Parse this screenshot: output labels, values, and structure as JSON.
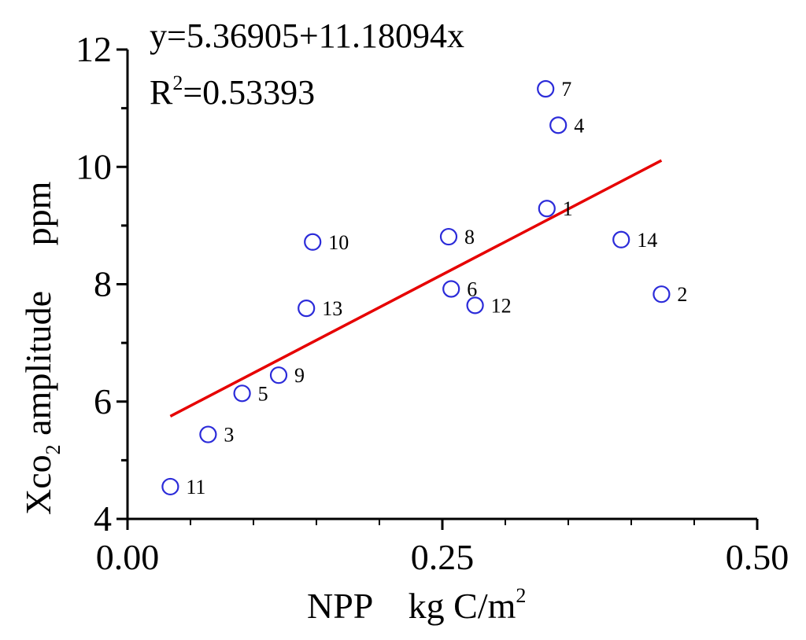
{
  "chart_data": {
    "type": "scatter",
    "equation": "y=5.36905+11.18094x",
    "r2_prefix": "R",
    "r2_sup": "2",
    "r2_value": "=0.53393",
    "xlabel_main": "NPP    kg C/m",
    "xlabel_sup": "2",
    "ylabel_main": "Xco",
    "ylabel_sub": "2",
    "ylabel_rest": " amplitude     ppm",
    "xlim": [
      0.0,
      0.5
    ],
    "ylim": [
      4,
      12
    ],
    "x_ticks": [
      {
        "value": 0.0,
        "label": "0.00"
      },
      {
        "value": 0.25,
        "label": "0.25"
      },
      {
        "value": 0.5,
        "label": "0.50"
      }
    ],
    "y_ticks": [
      {
        "value": 4,
        "label": "4"
      },
      {
        "value": 6,
        "label": "6"
      },
      {
        "value": 8,
        "label": "8"
      },
      {
        "value": 10,
        "label": "10"
      },
      {
        "value": 12,
        "label": "12"
      }
    ],
    "points": [
      {
        "label": "1",
        "x": 0.333,
        "y": 9.29
      },
      {
        "label": "2",
        "x": 0.424,
        "y": 7.83
      },
      {
        "label": "3",
        "x": 0.064,
        "y": 5.44
      },
      {
        "label": "4",
        "x": 0.342,
        "y": 10.71
      },
      {
        "label": "5",
        "x": 0.091,
        "y": 6.14
      },
      {
        "label": "6",
        "x": 0.257,
        "y": 7.92
      },
      {
        "label": "7",
        "x": 0.332,
        "y": 11.33
      },
      {
        "label": "8",
        "x": 0.255,
        "y": 8.81
      },
      {
        "label": "9",
        "x": 0.12,
        "y": 6.45
      },
      {
        "label": "10",
        "x": 0.147,
        "y": 8.72
      },
      {
        "label": "11",
        "x": 0.034,
        "y": 4.55
      },
      {
        "label": "12",
        "x": 0.276,
        "y": 7.64
      },
      {
        "label": "13",
        "x": 0.142,
        "y": 7.59
      },
      {
        "label": "14",
        "x": 0.392,
        "y": 8.76
      }
    ],
    "fit_line": {
      "intercept": 5.36905,
      "slope": 11.18094,
      "x_range": [
        0.034,
        0.424
      ]
    },
    "point_color": "#2b2bd9",
    "line_color": "#e60000"
  }
}
